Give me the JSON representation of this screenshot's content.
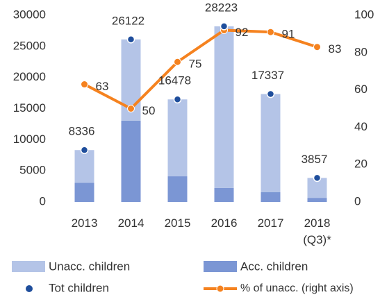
{
  "chart_data": {
    "type": "bar",
    "categories": [
      "2013",
      "2014",
      "2015",
      "2016",
      "2017",
      "2018 (Q3)*"
    ],
    "series": [
      {
        "name": "Acc. children",
        "color": "#7b96d4",
        "values": [
          3086,
          13061,
          4120,
          2258,
          1560,
          656
        ]
      },
      {
        "name": "Unacc. children",
        "color": "#b4c4e7",
        "values": [
          5250,
          13061,
          12358,
          25965,
          15777,
          3201
        ]
      },
      {
        "name": "Tot children",
        "color": "#1f4e9c",
        "values": [
          8336,
          26122,
          16478,
          28223,
          17337,
          3857
        ]
      },
      {
        "name": "% of unacc. (right axis)",
        "color": "#f5821f",
        "axis": "y2",
        "values": [
          63,
          50,
          75,
          92,
          91,
          83
        ]
      }
    ],
    "ylim": [
      0,
      30000
    ],
    "yticks": [
      0,
      5000,
      10000,
      15000,
      20000,
      25000,
      30000
    ],
    "y2lim": [
      0,
      100
    ],
    "y2ticks": [
      0,
      20,
      40,
      60,
      80,
      100
    ],
    "grid": false
  }
}
